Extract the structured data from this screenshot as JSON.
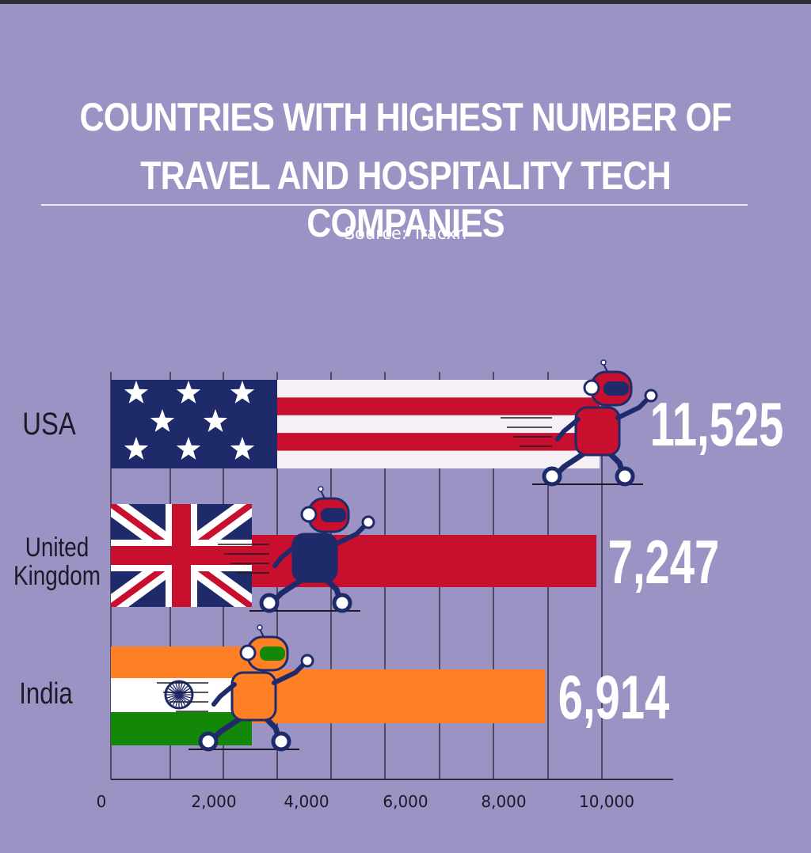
{
  "title_line1": "COUNTRIES WITH HIGHEST NUMBER OF",
  "title_line2": "TRAVEL AND HOSPITALITY TECH COMPANIES",
  "source": "Source: Tracxn",
  "colors": {
    "background": "#9a93c4",
    "flag_red": "#c8102e",
    "flag_navy": "#1f2a6b",
    "india_saffron": "#ff7f24",
    "india_green": "#138808",
    "robot_orange": "#ff7f24"
  },
  "chart_data": {
    "type": "bar",
    "orientation": "horizontal",
    "categories": [
      "USA",
      "United Kingdom",
      "India"
    ],
    "values": [
      11525,
      7247,
      6914
    ],
    "value_labels": [
      "11,525",
      "7,247",
      "6,914"
    ],
    "x_ticks": [
      "0",
      "2,000",
      "4,000",
      "6,000",
      "8,000",
      "10,000"
    ],
    "xlim": [
      0,
      10000
    ],
    "grid": true,
    "title": "COUNTRIES WITH HIGHEST NUMBER OF TRAVEL AND HOSPITALITY TECH COMPANIES",
    "xlabel": "",
    "ylabel": "",
    "decoration": "Bars drawn as national flags with a running robot mascot at each bar end"
  }
}
